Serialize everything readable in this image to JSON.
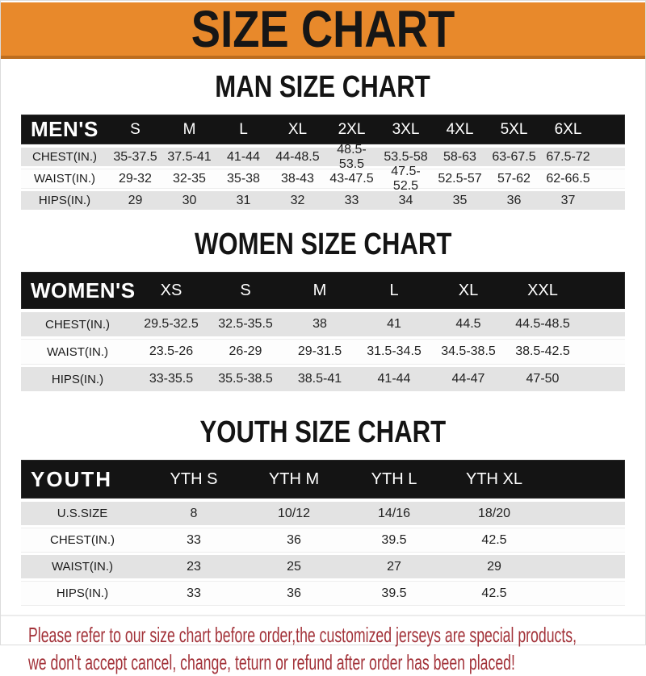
{
  "banner": {
    "title": "SIZE CHART",
    "bg_color": "#e8892b",
    "edge_color": "#bd6d1e",
    "title_color": "#161616"
  },
  "men": {
    "heading": "MAN SIZE CHART",
    "label": "MEN'S",
    "cols": [
      "S",
      "M",
      "L",
      "XL",
      "2XL",
      "3XL",
      "4XL",
      "5XL",
      "6XL"
    ],
    "rows": [
      {
        "label": "CHEST(IN.)",
        "values": [
          "35-37.5",
          "37.5-41",
          "41-44",
          "44-48.5",
          "48.5-53.5",
          "53.5-58",
          "58-63",
          "63-67.5",
          "67.5-72"
        ]
      },
      {
        "label": "WAIST(IN.)",
        "values": [
          "29-32",
          "32-35",
          "35-38",
          "38-43",
          "43-47.5",
          "47.5-52.5",
          "52.5-57",
          "57-62",
          "62-66.5"
        ]
      },
      {
        "label": "HIPS(IN.)",
        "values": [
          "29",
          "30",
          "31",
          "32",
          "33",
          "34",
          "35",
          "36",
          "37"
        ]
      }
    ]
  },
  "women": {
    "heading": "WOMEN SIZE CHART",
    "label": "WOMEN'S",
    "cols": [
      "XS",
      "S",
      "M",
      "L",
      "XL",
      "XXL"
    ],
    "rows": [
      {
        "label": "CHEST(IN.)",
        "values": [
          "29.5-32.5",
          "32.5-35.5",
          "38",
          "41",
          "44.5",
          "44.5-48.5"
        ]
      },
      {
        "label": "WAIST(IN.)",
        "values": [
          "23.5-26",
          "26-29",
          "29-31.5",
          "31.5-34.5",
          "34.5-38.5",
          "38.5-42.5"
        ]
      },
      {
        "label": "HIPS(IN.)",
        "values": [
          "33-35.5",
          "35.5-38.5",
          "38.5-41",
          "41-44",
          "44-47",
          "47-50"
        ]
      }
    ]
  },
  "youth": {
    "heading": "YOUTH SIZE CHART",
    "label": "YOUTH",
    "cols": [
      "YTH S",
      "YTH M",
      "YTH L",
      "YTH XL"
    ],
    "rows": [
      {
        "label": "U.S.SIZE",
        "values": [
          "8",
          "10/12",
          "14/16",
          "18/20"
        ]
      },
      {
        "label": "CHEST(IN.)",
        "values": [
          "33",
          "36",
          "39.5",
          "42.5"
        ]
      },
      {
        "label": "WAIST(IN.)",
        "values": [
          "23",
          "25",
          "27",
          "29"
        ]
      },
      {
        "label": "HIPS(IN.)",
        "values": [
          "33",
          "36",
          "39.5",
          "42.5"
        ]
      }
    ]
  },
  "note": {
    "line1": "Please refer to our size chart before order,the customized jerseys are special products,",
    "line2": "we don't accept cancel, change, teturn or refund after order has been placed!",
    "text_color": "#a3333a"
  },
  "colors": {
    "bar_black": "#141414",
    "row_grey": "#e3e3e3",
    "row_white": "#fdfdfd"
  }
}
